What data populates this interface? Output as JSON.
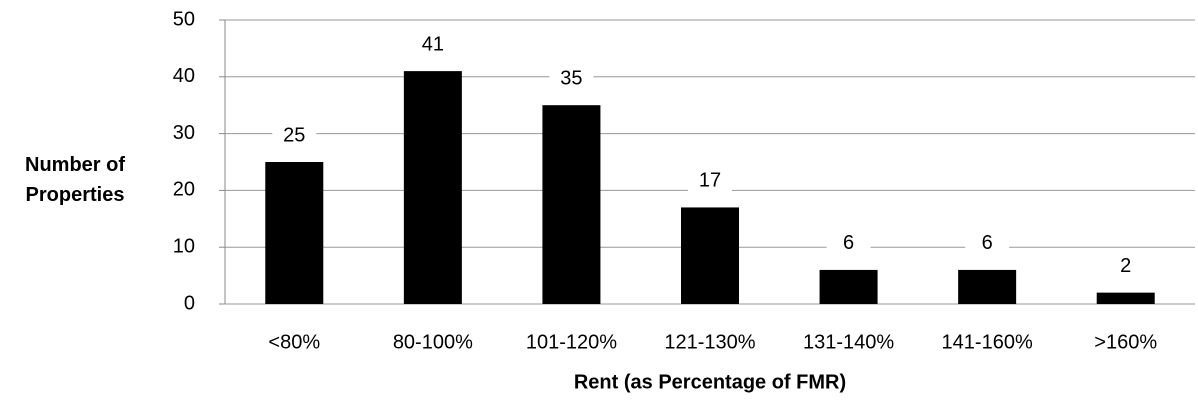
{
  "chart_data": {
    "type": "bar",
    "categories": [
      "<80%",
      "80-100%",
      "101-120%",
      "121-130%",
      "131-140%",
      "141-160%",
      ">160%"
    ],
    "values": [
      25,
      41,
      35,
      17,
      6,
      6,
      2
    ],
    "color": "#000000",
    "ylim": [
      0,
      50
    ],
    "yticks": [
      0,
      10,
      20,
      30,
      40,
      50
    ],
    "grid": true,
    "y_label": "Number of Properties",
    "x_label": "Rent (as Percentage of FMR)"
  }
}
